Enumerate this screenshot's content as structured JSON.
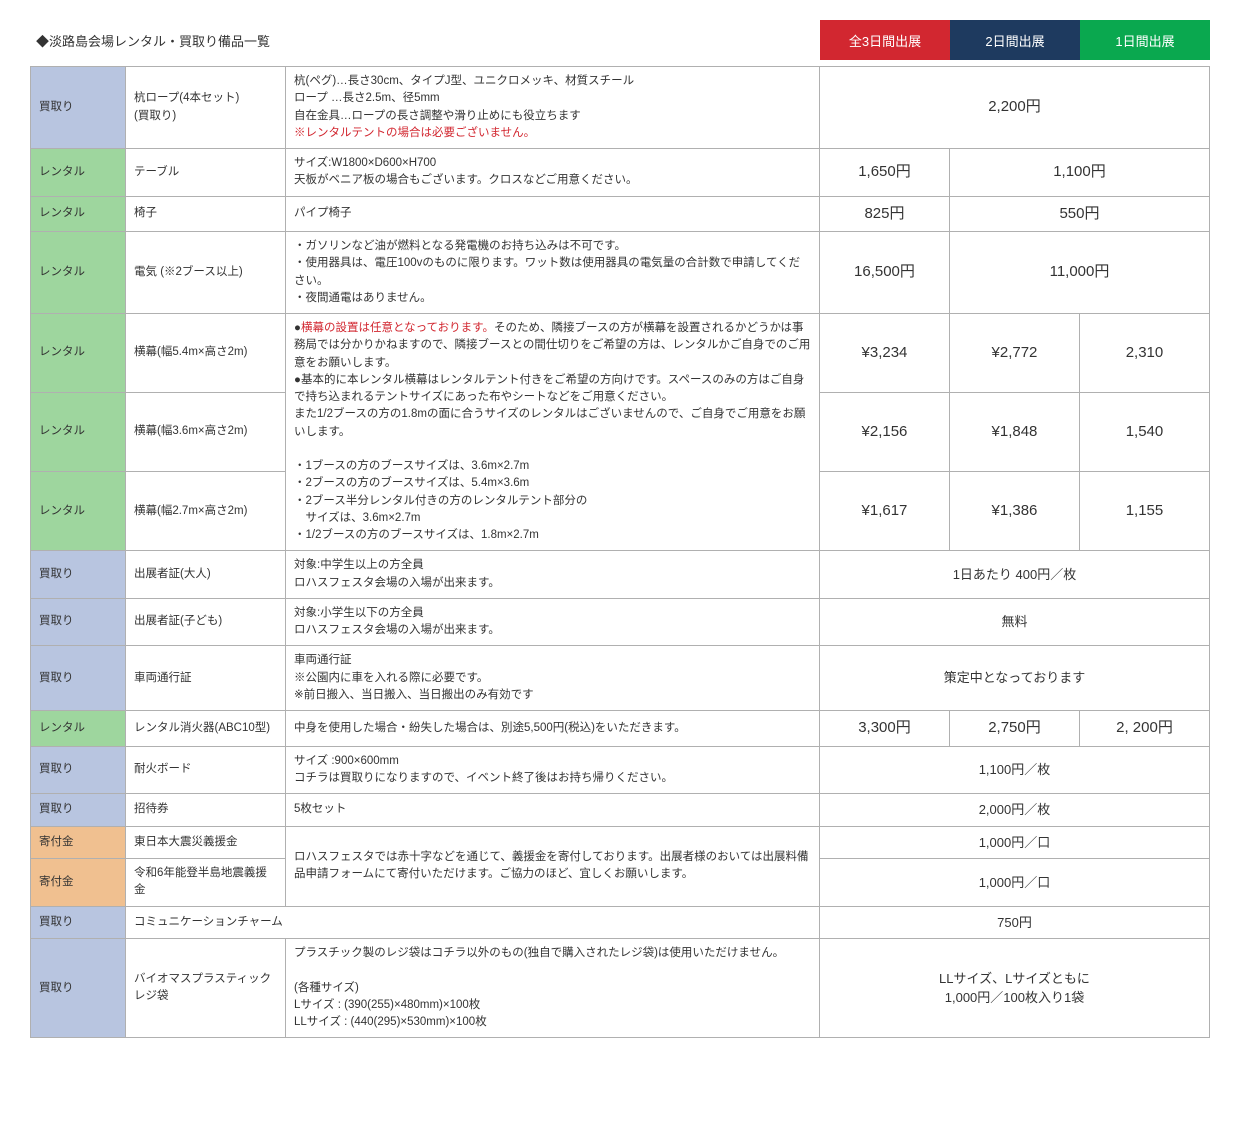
{
  "title": "◆淡路島会場レンタル・買取り備品一覧",
  "tabs": {
    "t1": "全3日間出展",
    "t2": "2日間出展",
    "t3": "1日間出展"
  },
  "type": {
    "buy": "買取り",
    "rent": "レンタル",
    "don": "寄付金"
  },
  "rows": {
    "r1": {
      "item": "杭ロープ(4本セット)\n(買取り)",
      "desc1": "杭(ペグ)…長さ30cm、タイプJ型、ユニクロメッキ、材質スチール\nロープ …長さ2.5m、径5mm\n自在金具…ロープの長さ調整や滑り止めにも役立ちます",
      "desc_red": "※レンタルテントの場合は必要ございません。",
      "price": "2,200円"
    },
    "r2": {
      "item": "テーブル",
      "desc": "サイズ:W1800×D600×H700\n天板がベニア板の場合もございます。クロスなどご用意ください。",
      "p1": "1,650円",
      "p2": "1,100円"
    },
    "r3": {
      "item": "椅子",
      "desc": "パイプ椅子",
      "p1": "825円",
      "p2": "550円"
    },
    "r4": {
      "item": "電気 (※2ブース以上)",
      "desc": "・ガソリンなど油が燃料となる発電機のお持ち込みは不可です。\n・使用器具は、電圧100vのものに限ります。ワット数は使用器具の電気量の合計数で申請してください。\n・夜間通電はありません。",
      "p1": "16,500円",
      "p2": "11,000円"
    },
    "r5": {
      "item": "横幕(幅5.4m×高さ2m)",
      "p1": "¥3,234",
      "p2": "¥2,772",
      "p3": "2,310"
    },
    "r6": {
      "item": "横幕(幅3.6m×高さ2m)",
      "p1": "¥2,156",
      "p2": "¥1,848",
      "p3": "1,540"
    },
    "r7": {
      "item": "横幕(幅2.7m×高さ2m)",
      "p1": "¥1,617",
      "p2": "¥1,386",
      "p3": "1,155"
    },
    "yokomaku": {
      "lead": "●",
      "red": "横幕の設置は任意となっております。",
      "body1": "そのため、隣接ブースの方が横幕を設置されるかどうかは事務局では分かりかねますので、隣接ブースとの間仕切りをご希望の方は、レンタルかご自身でのご用意をお願いします。",
      "body2": "●基本的に本レンタル横幕はレンタルテント付きをご希望の方向けです。スペースのみの方はご自身で持ち込まれるテントサイズにあった布やシートなどをご用意ください。\nまた1/2ブースの方の1.8mの面に合うサイズのレンタルはございませんので、ご自身でご用意をお願いします。",
      "body3": "・1ブースの方のブースサイズは、3.6m×2.7m\n・2ブースの方のブースサイズは、5.4m×3.6m\n・2ブース半分レンタル付きの方のレンタルテント部分の\n　サイズは、3.6m×2.7m\n・1/2ブースの方のブースサイズは、1.8m×2.7m"
    },
    "r8": {
      "item": "出展者証(大人)",
      "desc": "対象:中学生以上の方全員\nロハスフェスタ会場の入場が出来ます。",
      "price": "1日あたり  400円／枚"
    },
    "r9": {
      "item": "出展者証(子ども)",
      "desc": "対象:小学生以下の方全員\nロハスフェスタ会場の入場が出来ます。",
      "price": "無料"
    },
    "r10": {
      "item": "車両通行証",
      "desc": "車両通行証\n※公園内に車を入れる際に必要です。\n※前日搬入、当日搬入、当日搬出のみ有効です",
      "price": "策定中となっております"
    },
    "r11": {
      "item": "レンタル消火器(ABC10型)",
      "desc": "中身を使用した場合・紛失した場合は、別途5,500円(税込)をいただきます。",
      "p1": "3,300円",
      "p2": "2,750円",
      "p3": "2, 200円"
    },
    "r12": {
      "item": "耐火ボード",
      "desc": "サイズ :900×600mm\nコチラは買取りになりますので、イベント終了後はお持ち帰りください。",
      "price": "1,100円／枚"
    },
    "r13": {
      "item": "招待券",
      "desc": "5枚セット",
      "price": "2,000円／枚"
    },
    "r14": {
      "item": "東日本大震災義援金",
      "price": "1,000円／口"
    },
    "r15": {
      "item": "令和6年能登半島地震義援金",
      "price": "1,000円／口"
    },
    "donation_desc": "ロハスフェスタでは赤十字などを通じて、義援金を寄付しております。出展者様のおいては出展料備品申請フォームにて寄付いただけます。ご協力のほど、宜しくお願いします。",
    "r16": {
      "item": "コミュニケーションチャーム",
      "price": "750円"
    },
    "r17": {
      "item": "バイオマスプラスティック\nレジ袋",
      "desc": "プラスチック製のレジ袋はコチラ以外のもの(独自で購入されたレジ袋)は使用いただけません。\n\n(各種サイズ)\n Lサイズ  : (390(255)×480mm)×100枚\n LLサイズ : (440(295)×530mm)×100枚",
      "price": "LLサイズ、Lサイズともに\n1,000円／100枚入り1袋"
    }
  }
}
